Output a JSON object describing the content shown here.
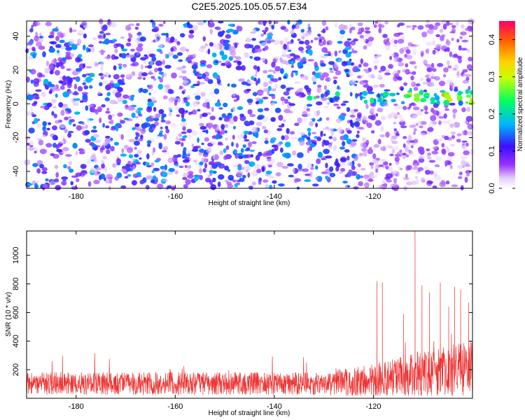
{
  "title": "C2E5.2025.105.05.57.E34",
  "chart_data": [
    {
      "type": "heatmap",
      "xlabel": "Height of straight line (km)",
      "ylabel": "Frequency (Hz)",
      "xlim": [
        -190,
        -100
      ],
      "ylim": [
        -50,
        49
      ],
      "xticks": [
        -180,
        -160,
        -140,
        -120
      ],
      "yticks": [
        -40,
        -20,
        0,
        20,
        40
      ],
      "colorbar": {
        "label": "Normalized spectral amplitude",
        "range": [
          0,
          0.45
        ],
        "ticks": [
          "0.0",
          "0.1",
          "0.2",
          "0.3",
          "0.4"
        ],
        "colormap": [
          "#ffffff",
          "#7b00ff",
          "#2200ff",
          "#00c8ff",
          "#00ff40",
          "#ffff00",
          "#ff7f00",
          "#ff0066"
        ]
      },
      "band": {
        "center_hz": 4,
        "half_width_hz": 6,
        "onset_km": -145,
        "strong_from_km": -122
      }
    },
    {
      "type": "line",
      "xlabel": "Height of straight line (km)",
      "ylabel": "SNR (10 * v/v)",
      "xlim": [
        -190,
        -100
      ],
      "ylim": [
        0,
        1170
      ],
      "xticks": [
        -180,
        -160,
        -140,
        -120
      ],
      "yticks": [
        200,
        400,
        600,
        800,
        1000
      ],
      "color": "#ee3333",
      "peaks": [
        {
          "x": -119.3,
          "y": 820
        },
        {
          "x": -118.2,
          "y": 810
        },
        {
          "x": -113.9,
          "y": 590
        },
        {
          "x": -111.6,
          "y": 1170
        },
        {
          "x": -110.2,
          "y": 790
        },
        {
          "x": -108.7,
          "y": 740
        },
        {
          "x": -106.5,
          "y": 810
        },
        {
          "x": -104.8,
          "y": 640
        },
        {
          "x": -103.6,
          "y": 780
        },
        {
          "x": -102.4,
          "y": 760
        },
        {
          "x": -100.8,
          "y": 670
        }
      ]
    }
  ]
}
